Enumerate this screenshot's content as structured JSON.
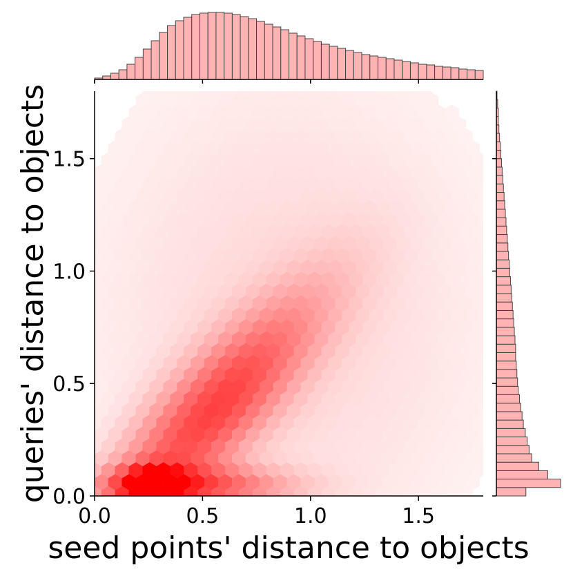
{
  "chart_data": {
    "type": "hexbin",
    "xlabel": "seed points' distance to objects",
    "ylabel": "queries' distance to objects",
    "xlim": [
      0.0,
      1.8
    ],
    "ylim": [
      0.0,
      1.8
    ],
    "xticks": [
      "0.0",
      "0.5",
      "1.0",
      "1.5"
    ],
    "yticks": [
      "0.0",
      "0.5",
      "1.0",
      "1.5"
    ],
    "grid": false,
    "color": "#ff0000",
    "hist_color": "#ffb3b3",
    "hist_edge_color": "#444444",
    "density_model": {
      "description": "joint density of (seed distance, query distance); correlated gamma-like",
      "peak": {
        "x": 0.27,
        "y": 0.05
      },
      "correlation_slope": 0.85
    },
    "marginal_x": {
      "bin_width": 0.0375,
      "range": [
        0.0,
        1.8
      ],
      "counts": [
        2,
        5,
        9,
        14,
        22,
        32,
        44,
        56,
        68,
        78,
        85,
        90,
        94,
        96,
        97,
        97,
        96,
        94,
        91,
        88,
        84,
        80,
        76,
        72,
        67,
        63,
        59,
        55,
        51,
        48,
        45,
        42,
        39,
        36,
        34,
        32,
        30,
        28,
        26,
        24,
        22,
        21,
        19,
        18,
        17,
        15,
        14,
        13
      ]
    },
    "marginal_y": {
      "bin_width": 0.0375,
      "range": [
        0.0,
        1.8
      ],
      "counts": [
        46,
        100,
        80,
        66,
        55,
        51,
        48,
        45,
        42,
        40,
        38,
        36,
        34,
        33,
        32,
        31,
        30,
        30,
        29,
        28,
        27,
        26,
        25,
        24,
        23,
        22,
        21,
        20,
        19,
        18,
        17,
        16,
        15,
        14,
        13,
        12,
        11,
        10,
        9,
        8,
        7,
        6,
        5,
        4,
        3,
        3,
        2,
        1
      ]
    }
  }
}
